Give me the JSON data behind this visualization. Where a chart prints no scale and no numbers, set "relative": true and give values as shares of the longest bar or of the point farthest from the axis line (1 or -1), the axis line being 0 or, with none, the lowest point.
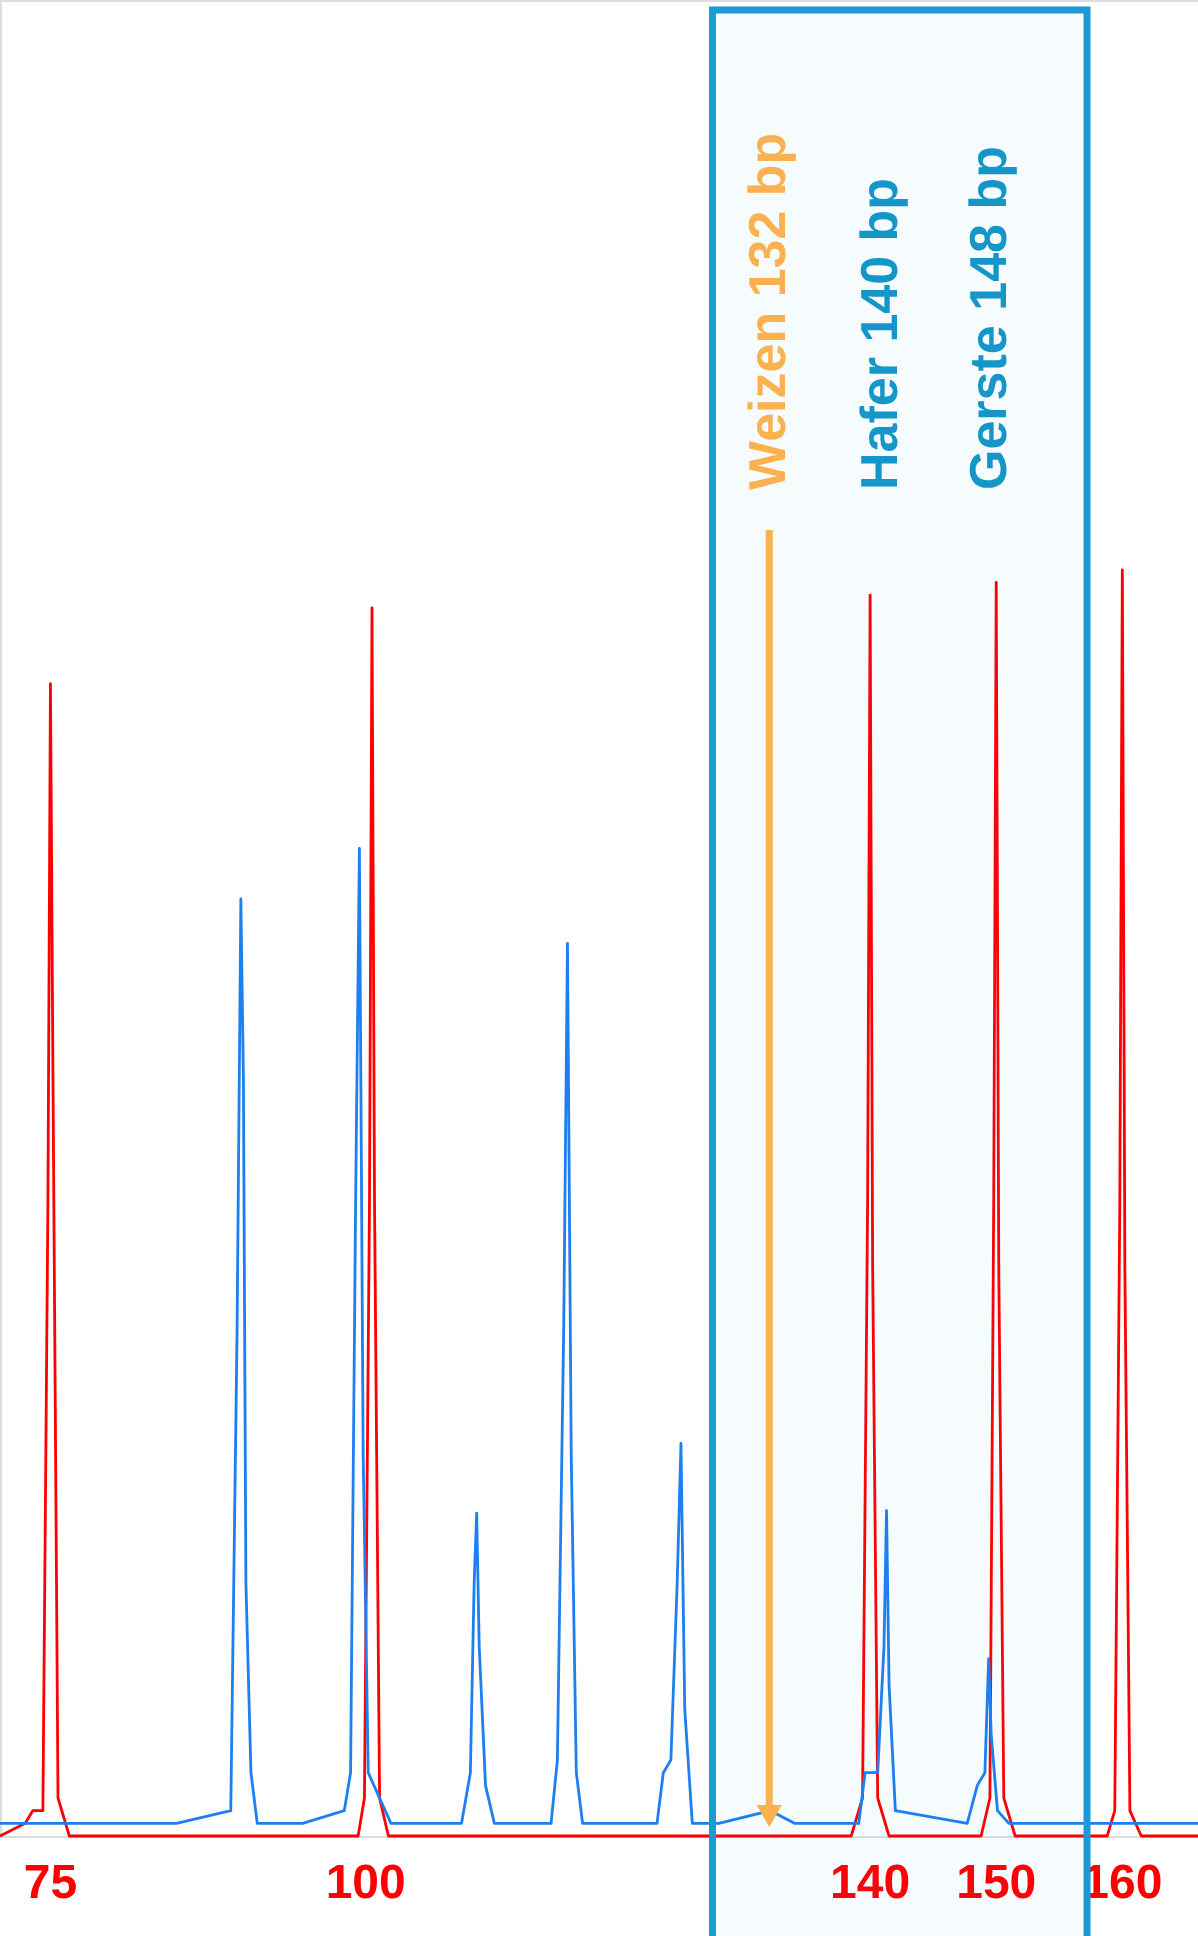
{
  "chart_data": {
    "type": "line",
    "relative": true,
    "xlim": [
      71,
      166
    ],
    "xticks": [
      75,
      100,
      140,
      150,
      160
    ],
    "series": [
      {
        "color": "#ff0000",
        "x": [
          71,
          73,
          73.6,
          74.4,
          74.8,
          75,
          75.2,
          75.6,
          76.5,
          99.4,
          99.9,
          100.3,
          100.5,
          100.7,
          101.1,
          101.8,
          138.5,
          139.4,
          139.8,
          140,
          140.2,
          140.6,
          141.5,
          148.8,
          149.5,
          149.8,
          150,
          150.2,
          150.6,
          151.5,
          158.8,
          159.4,
          159.8,
          160,
          160.2,
          160.6,
          161.5,
          166
        ],
        "values": [
          0,
          0.01,
          0.02,
          0.02,
          0.5,
          0.91,
          0.6,
          0.03,
          0,
          0,
          0.03,
          0.5,
          0.97,
          0.5,
          0.03,
          0,
          0,
          0.03,
          0.5,
          0.98,
          0.45,
          0.03,
          0,
          0,
          0.03,
          0.5,
          0.99,
          0.45,
          0.03,
          0,
          0,
          0.02,
          0.5,
          1,
          0.45,
          0.02,
          0,
          0
        ]
      },
      {
        "color": "#1e7ff0",
        "x": [
          71,
          78,
          80,
          85,
          89.3,
          89.8,
          90.1,
          90.3,
          90.5,
          90.9,
          91.4,
          95,
          98.3,
          98.8,
          99.2,
          99.5,
          99.8,
          100.2,
          102,
          107.6,
          108.3,
          108.6,
          108.8,
          109.0,
          109.5,
          110.2,
          114.7,
          115.2,
          115.7,
          116.0,
          116.3,
          116.7,
          117.2,
          123.1,
          123.6,
          124.2,
          124.7,
          125.0,
          125.3,
          125.9,
          128,
          132.1,
          134,
          139.1,
          139.6,
          140.6,
          141.1,
          141.3,
          141.5,
          142,
          147.7,
          148.5,
          149.1,
          149.4,
          149.6,
          150.1,
          151,
          155,
          162,
          166
        ],
        "values": [
          0.01,
          0.01,
          0.01,
          0.01,
          0.02,
          0.4,
          0.74,
          0.6,
          0.2,
          0.05,
          0.01,
          0.01,
          0.02,
          0.05,
          0.5,
          0.78,
          0.3,
          0.05,
          0.01,
          0.01,
          0.05,
          0.2,
          0.255,
          0.15,
          0.04,
          0.01,
          0.01,
          0.06,
          0.4,
          0.705,
          0.3,
          0.05,
          0.01,
          0.01,
          0.05,
          0.06,
          0.2,
          0.31,
          0.1,
          0.01,
          0.01,
          0.02,
          0.01,
          0.01,
          0.05,
          0.05,
          0.15,
          0.257,
          0.12,
          0.02,
          0.01,
          0.04,
          0.05,
          0.14,
          0.08,
          0.02,
          0.01,
          0.01,
          0.01,
          0.01
        ]
      }
    ],
    "bands": [
      {
        "axis": "x",
        "from": 127.5,
        "to": 157.2,
        "color": "#1a9ad6"
      }
    ],
    "annotations": [
      {
        "text": "Weizen 132 bp",
        "x": 132
      },
      "Hafer 140 bp",
      "Gerste 148 bp"
    ]
  }
}
